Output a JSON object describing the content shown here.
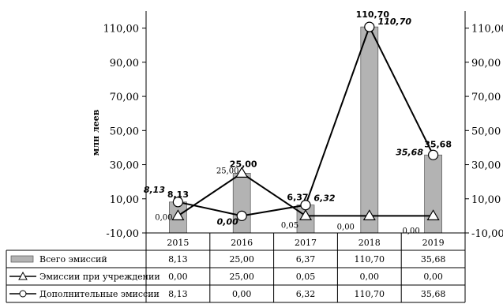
{
  "chart_data": {
    "type": "bar",
    "categories": [
      "2015",
      "2016",
      "2017",
      "2018",
      "2019"
    ],
    "ylabel": "млн леев",
    "ylim": [
      -10,
      120
    ],
    "yticks": [
      "-10,00",
      "10,00",
      "30,00",
      "50,00",
      "70,00",
      "90,00",
      "110,00"
    ],
    "ytick_values": [
      -10,
      10,
      30,
      50,
      70,
      90,
      110
    ],
    "secondary_axis": true,
    "colors": {
      "bar": "#b3b3b3",
      "line": "#000000",
      "marker_fill": "#ffffff"
    },
    "series": [
      {
        "name": "Всего эмиссий",
        "kind": "bar",
        "values": [
          8.13,
          25.0,
          6.37,
          110.7,
          35.68
        ],
        "labels": [
          "8,13",
          "25,00",
          "6,37",
          "110,70",
          "35,68"
        ],
        "marker": "rect"
      },
      {
        "name": "Эмиссии при учреждении",
        "kind": "line",
        "values": [
          0.0,
          25.0,
          0.05,
          0.0,
          0.0
        ],
        "labels": [
          "0,00",
          "25,00",
          "0,05",
          "0,00",
          "0,00"
        ],
        "marker": "triangle"
      },
      {
        "name": "Дополнительные эмиссии",
        "kind": "line",
        "values": [
          8.13,
          0.0,
          6.32,
          110.7,
          35.68
        ],
        "labels": [
          "8,13",
          "0,00",
          "6,32",
          "110,70",
          "35,68"
        ],
        "marker": "circle"
      }
    ]
  }
}
